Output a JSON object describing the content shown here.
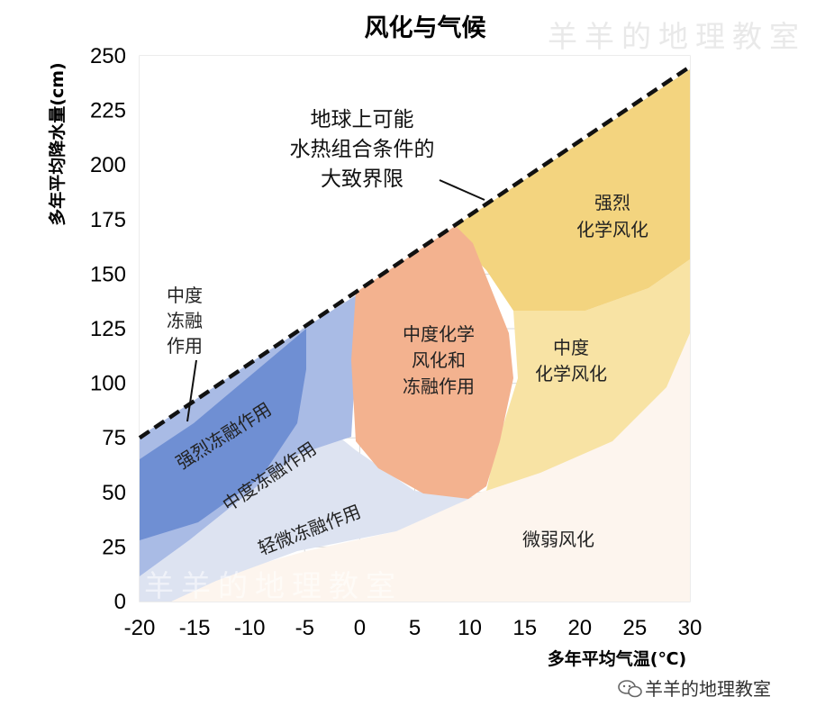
{
  "chart_data": {
    "type": "area",
    "title": "风化与气候",
    "xlabel": "多年平均气温(℃)",
    "ylabel": "多年平均降水量(cm)",
    "xlim": [
      -20,
      30
    ],
    "ylim": [
      0,
      250
    ],
    "x_ticks": [
      "-20",
      "-15",
      "-10",
      "-5",
      "0",
      "5",
      "10",
      "15",
      "20",
      "25",
      "30"
    ],
    "y_ticks": [
      "0",
      "25",
      "50",
      "75",
      "100",
      "125",
      "150",
      "175",
      "200",
      "225",
      "250"
    ],
    "boundary_line": {
      "label": "地球上可能\n水热组合条件的\n大致界限",
      "points": [
        [
          -20,
          75
        ],
        [
          30,
          245
        ]
      ],
      "style": "dashed"
    },
    "zones": [
      {
        "label": "中度\n冻融\n作用",
        "color": "#ffffff"
      },
      {
        "label": "强烈冻融作用",
        "color": "#6f8fd3"
      },
      {
        "label": "中度冻融作用",
        "color": "#a9bbe5"
      },
      {
        "label": "轻微冻融作用",
        "color": "#dde3f1"
      },
      {
        "label": "中度化学\n风化和\n冻融作用",
        "color": "#f3b28f"
      },
      {
        "label": "强烈\n化学风化",
        "color": "#f3d47f"
      },
      {
        "label": "中度\n化学风化",
        "color": "#f8e3a4"
      },
      {
        "label": "微弱风化",
        "color": "#fdf5ee"
      }
    ]
  },
  "watermark": "羊羊的地理教室",
  "footer_text": "羊羊的地理教室",
  "footer_icon": "wechat-icon"
}
